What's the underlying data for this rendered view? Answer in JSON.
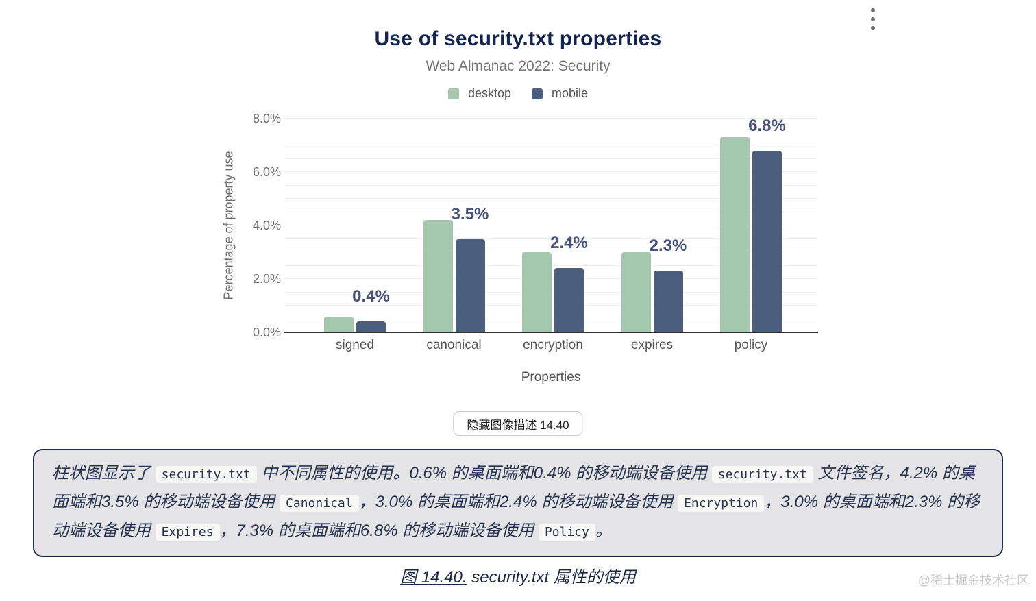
{
  "page": {
    "watermark": "@稀土掘金技术社区"
  },
  "chart": {
    "title": "Use of security.txt properties",
    "subtitle": "Web Almanac 2022: Security",
    "ylabel": "Percentage of property use",
    "xlabel": "Properties"
  },
  "chart_data": {
    "type": "bar",
    "categories": [
      "signed",
      "canonical",
      "encryption",
      "expires",
      "policy"
    ],
    "series": [
      {
        "name": "desktop",
        "color": "#a4c7ae",
        "values": [
          0.6,
          4.2,
          3.0,
          3.0,
          7.3
        ]
      },
      {
        "name": "mobile",
        "color": "#4b5e7e",
        "values": [
          0.4,
          3.5,
          2.4,
          2.3,
          6.8
        ]
      }
    ],
    "value_labels": [
      "0.4%",
      "3.5%",
      "2.4%",
      "2.3%",
      "6.8%"
    ],
    "title": "Use of security.txt properties",
    "subtitle": "Web Almanac 2022: Security",
    "xlabel": "Properties",
    "ylabel": "Percentage of property use",
    "ylim": [
      0,
      8
    ],
    "yticks": [
      {
        "value": 0,
        "label": "0.0%"
      },
      {
        "value": 2,
        "label": "2.0%"
      },
      {
        "value": 4,
        "label": "4.0%"
      },
      {
        "value": 6,
        "label": "6.0%"
      },
      {
        "value": 8,
        "label": "8.0%"
      }
    ],
    "grid_step": 0.5,
    "grid": "on",
    "legend_position": "top"
  },
  "toggle_button": {
    "label": "隐藏图像描述 14.40"
  },
  "description": {
    "segments": [
      {
        "type": "text",
        "text": "柱状图显示了 "
      },
      {
        "type": "code",
        "text": "security.txt"
      },
      {
        "type": "text",
        "text": " 中不同属性的使用。0.6% 的桌面端和0.4% 的移动端设备使用 "
      },
      {
        "type": "code",
        "text": "security.txt"
      },
      {
        "type": "text",
        "text": " 文件签名，4.2% 的桌面端和3.5% 的移动端设备使用 "
      },
      {
        "type": "code",
        "text": "Canonical"
      },
      {
        "type": "text",
        "text": "，3.0% 的桌面端和2.4% 的移动端设备使用 "
      },
      {
        "type": "code",
        "text": "Encryption"
      },
      {
        "type": "text",
        "text": "，3.0% 的桌面端和2.3% 的移动端设备使用 "
      },
      {
        "type": "code",
        "text": "Expires"
      },
      {
        "type": "text",
        "text": "，7.3% 的桌面端和6.8% 的移动端设备使用 "
      },
      {
        "type": "code",
        "text": "Policy"
      },
      {
        "type": "text",
        "text": "。"
      }
    ]
  },
  "caption": {
    "link_text": "图 14.40.",
    "text": " security.txt 属性的使用"
  }
}
